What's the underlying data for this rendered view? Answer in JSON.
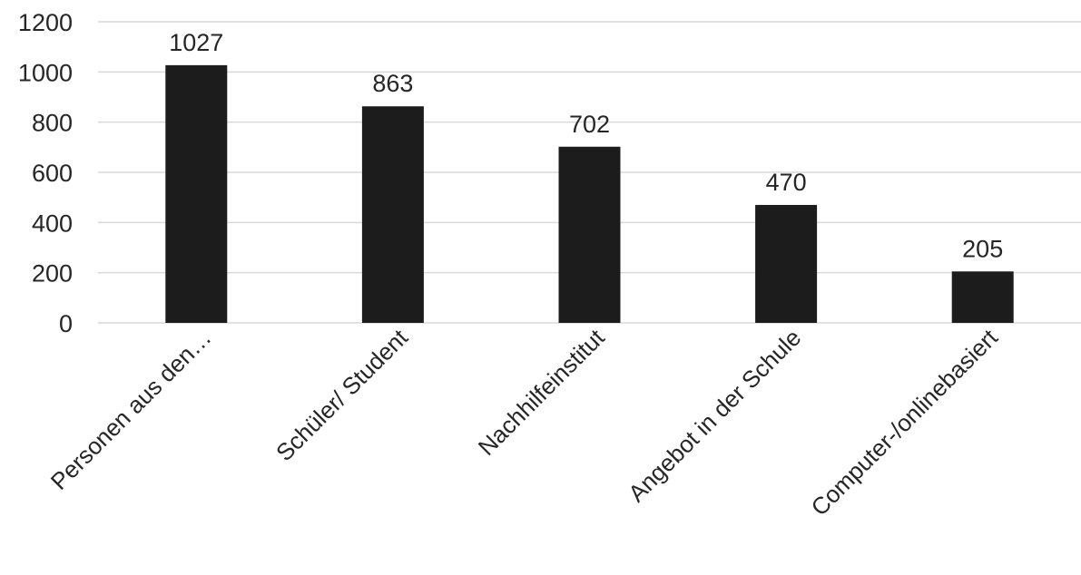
{
  "chart_data": {
    "type": "bar",
    "categories": [
      "Personen aus den…",
      "Schüler/ Student",
      "Nachhilfeinstitut",
      "Angebot in der Schule",
      "Computer-/onlinebasiert"
    ],
    "values": [
      1027,
      863,
      702,
      470,
      205
    ],
    "data_labels": [
      "1027",
      "863",
      "702",
      "470",
      "205"
    ],
    "ylim": [
      0,
      1200
    ],
    "yticks": [
      "0",
      "200",
      "400",
      "600",
      "800",
      "1000",
      "1200"
    ],
    "grid": true,
    "legend": "none",
    "colors": {
      "bar": "#1c1c1c",
      "grid": "#d9d9d9",
      "text": "#262626"
    }
  }
}
